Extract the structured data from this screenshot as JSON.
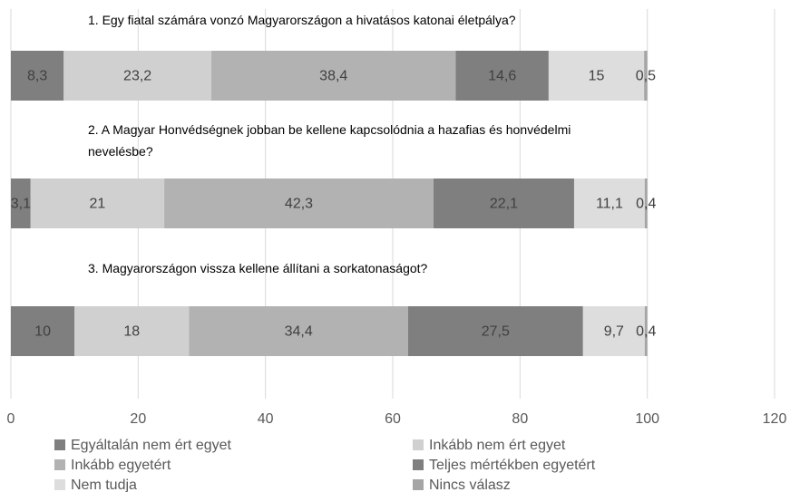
{
  "chart_data": {
    "type": "stacked_bar_horizontal",
    "categories": [
      "1. Egy fiatal számára vonzó Magyarországon a hivatásos katonai életpálya?",
      "2. A Magyar Honvédségnek jobban be kellene kapcsolódnia a hazafias és honvédelmi nevelésbe?",
      "3. Magyarországon vissza kellene állítani a sorkatonaságot?"
    ],
    "series": [
      {
        "name": "Egyáltalán nem ért egyet",
        "color": "#7f7f7f",
        "values": [
          8.3,
          3.1,
          10
        ],
        "value_labels": [
          "8,3",
          "3,1",
          "10"
        ]
      },
      {
        "name": "Inkább nem ért egyet",
        "color": "#d0d0d0",
        "values": [
          23.2,
          21,
          18
        ],
        "value_labels": [
          "23,2",
          "21",
          "18"
        ]
      },
      {
        "name": "Inkább egyetért",
        "color": "#b2b2b2",
        "values": [
          38.4,
          42.3,
          34.4
        ],
        "value_labels": [
          "38,4",
          "42,3",
          "34,4"
        ]
      },
      {
        "name": "Teljes mértékben egyetért",
        "color": "#7f7f7f",
        "values": [
          14.6,
          22.1,
          27.5
        ],
        "value_labels": [
          "14,6",
          "22,1",
          "27,5"
        ]
      },
      {
        "name": "Nem tudja",
        "color": "#dddddd",
        "values": [
          15,
          11.1,
          9.7
        ],
        "value_labels": [
          "15",
          "11,1",
          "9,7"
        ]
      },
      {
        "name": "Nincs válasz",
        "color": "#a5a5a5",
        "values": [
          0.5,
          0.4,
          0.4
        ],
        "value_labels": [
          "0,5",
          "0,4",
          "0,4"
        ]
      }
    ],
    "xlim": [
      0,
      120
    ],
    "xticks": [
      0,
      20,
      40,
      60,
      80,
      100,
      120
    ],
    "grid": true
  }
}
